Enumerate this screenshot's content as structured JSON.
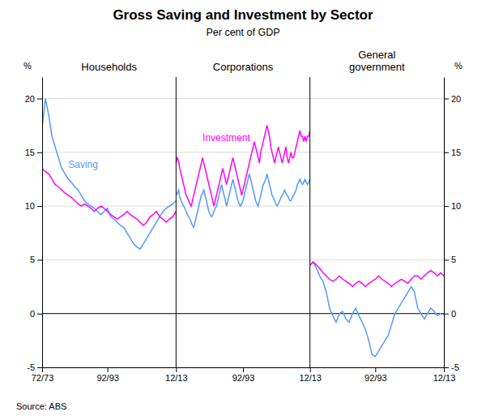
{
  "chart_data": {
    "type": "line",
    "title": "Gross Saving and Investment by Sector",
    "subtitle": "Per cent of GDP",
    "source": "Source: ABS",
    "ylabel": "%",
    "y2label": "%",
    "ylim": [
      -5,
      22
    ],
    "yticks": [
      -5,
      0,
      5,
      10,
      15,
      20
    ],
    "y2lim": [
      -5,
      22
    ],
    "y2ticks": [
      -5,
      0,
      5,
      10,
      15,
      20
    ],
    "grid": true,
    "panels": [
      {
        "title": "Households",
        "categories": [
          "72/73",
          null,
          null,
          null,
          null,
          null,
          null,
          null,
          null,
          null,
          null,
          null,
          null,
          null,
          null,
          null,
          null,
          null,
          null,
          null,
          "92/93",
          null,
          null,
          null,
          null,
          null,
          null,
          null,
          null,
          null,
          null,
          null,
          null,
          null,
          null,
          null,
          null,
          null,
          null,
          null,
          null,
          "12/13"
        ],
        "series": [
          {
            "color": "#5599FF",
            "label": "Saving",
            "values": [
              17.3,
              20.0,
              18.5,
              16.5,
              15.5,
              14.5,
              13.5,
              13.0,
              12.5,
              12.2,
              11.8,
              11.5,
              11.0,
              10.5,
              10.2,
              10.0,
              9.8,
              9.5,
              9.2,
              9.5,
              9.8,
              9.0,
              8.8,
              8.5,
              8.2,
              8.0,
              7.5,
              7.0,
              6.5,
              6.2,
              6.0,
              6.5,
              7.0,
              7.5,
              8.0,
              8.5,
              9.0,
              9.5,
              9.8,
              10.0,
              10.2,
              10.5
            ]
          },
          {
            "color": "#FF00FF",
            "values": [
              13.5,
              13.2,
              13.0,
              12.5,
              12.0,
              11.8,
              11.5,
              11.2,
              11.0,
              10.8,
              10.5,
              10.2,
              10.0,
              10.2,
              10.0,
              9.8,
              9.5,
              9.8,
              10.0,
              9.8,
              9.5,
              9.2,
              9.0,
              8.8,
              9.0,
              9.2,
              9.5,
              9.2,
              9.0,
              8.8,
              8.5,
              8.2,
              8.5,
              9.0,
              9.2,
              9.5,
              9.0,
              8.8,
              8.5,
              8.8,
              9.0,
              9.5
            ]
          }
        ]
      },
      {
        "title": "Corporations",
        "categories": [
          null,
          null,
          null,
          null,
          null,
          null,
          null,
          null,
          null,
          null,
          null,
          null,
          null,
          null,
          null,
          null,
          null,
          null,
          null,
          null,
          null,
          null,
          null,
          null,
          null,
          null,
          null,
          null,
          null,
          null,
          null,
          null,
          null,
          null,
          null,
          null,
          null,
          null,
          null,
          null,
          null,
          null,
          null,
          null,
          null,
          null,
          null,
          null,
          null,
          null,
          null,
          null,
          null,
          "92/93",
          null,
          null,
          null,
          null,
          null,
          null,
          null,
          null,
          null,
          null,
          null,
          null,
          null,
          null,
          null,
          null,
          null,
          null,
          null,
          null,
          null,
          null,
          null,
          null,
          null,
          null,
          null,
          null,
          null,
          null,
          null,
          null,
          null,
          null,
          null,
          null,
          null,
          null,
          null,
          null,
          null,
          null,
          null,
          null,
          null,
          null,
          null,
          null,
          null,
          null,
          null,
          null,
          "12/13"
        ],
        "series": [
          {
            "color": "#5599FF",
            "values": [
              11.0,
              11.2,
              11.5,
              10.8,
              10.5,
              10.2,
              10.0,
              9.8,
              9.5,
              9.2,
              9.0,
              8.8,
              8.5,
              8.2,
              8.0,
              8.5,
              9.0,
              9.5,
              10.0,
              10.5,
              11.0,
              11.2,
              11.5,
              11.0,
              10.5,
              10.0,
              9.5,
              9.2,
              9.0,
              9.2,
              9.5,
              9.8,
              10.0,
              10.5,
              11.0,
              11.5,
              12.0,
              11.5,
              11.0,
              10.5,
              10.0,
              10.5,
              11.0,
              11.5,
              12.0,
              12.5,
              12.0,
              11.5,
              11.0,
              10.5,
              10.2,
              10.0,
              10.2,
              10.5,
              11.0,
              11.5,
              12.0,
              12.5,
              13.0,
              12.5,
              12.0,
              11.5,
              11.0,
              10.5,
              10.2,
              10.0,
              10.5,
              11.0,
              11.5,
              12.0,
              12.2,
              12.5,
              13.0,
              12.5,
              12.0,
              11.5,
              11.0,
              10.8,
              10.5,
              10.2,
              10.0,
              10.2,
              10.5,
              10.8,
              11.0,
              11.2,
              11.5,
              11.2,
              11.0,
              10.8,
              10.5,
              10.5,
              10.8,
              11.0,
              11.2,
              11.5,
              12.0,
              12.2,
              12.5,
              12.2,
              12.0,
              12.2,
              12.5,
              12.2,
              12.0,
              12.2,
              12.5
            ]
          },
          {
            "color": "#FF00FF",
            "label": "Investment",
            "values": [
              14.0,
              14.5,
              14.2,
              13.5,
              13.0,
              12.5,
              12.0,
              11.5,
              11.0,
              10.8,
              10.5,
              10.2,
              10.0,
              10.5,
              11.0,
              11.5,
              12.0,
              12.5,
              13.0,
              13.5,
              14.0,
              14.5,
              14.0,
              13.5,
              13.0,
              12.5,
              12.0,
              11.5,
              11.0,
              10.5,
              10.0,
              10.5,
              11.0,
              11.5,
              12.0,
              12.5,
              13.0,
              13.5,
              13.0,
              12.5,
              12.0,
              12.5,
              13.0,
              13.5,
              14.0,
              14.5,
              14.0,
              13.5,
              13.0,
              12.5,
              12.0,
              11.5,
              11.0,
              11.5,
              12.0,
              12.5,
              13.0,
              13.5,
              14.0,
              14.5,
              15.0,
              15.5,
              16.0,
              15.5,
              15.0,
              14.5,
              14.0,
              15.0,
              15.5,
              16.0,
              16.5,
              17.0,
              17.5,
              17.0,
              16.5,
              15.5,
              15.0,
              14.5,
              14.0,
              14.5,
              15.0,
              15.5,
              15.0,
              14.5,
              14.0,
              14.5,
              15.0,
              15.5,
              14.5,
              14.0,
              14.5,
              15.0,
              14.5,
              14.5,
              15.0,
              15.5,
              16.0,
              16.5,
              17.0,
              16.5,
              16.5,
              16.0,
              16.5,
              16.0,
              16.5,
              16.5,
              17.0
            ]
          }
        ]
      },
      {
        "title": "General\ngovernment",
        "categories": [
          null,
          null,
          null,
          null,
          null,
          null,
          null,
          null,
          null,
          null,
          null,
          null,
          null,
          null,
          null,
          null,
          null,
          null,
          null,
          null,
          "92/93",
          null,
          null,
          null,
          null,
          null,
          null,
          null,
          null,
          null,
          null,
          null,
          null,
          null,
          null,
          null,
          null,
          null,
          null,
          null,
          null,
          "12/13"
        ],
        "series": [
          {
            "color": "#5599FF",
            "values": [
              4.5,
              4.8,
              4.2,
              3.5,
              3.0,
              2.0,
              0.5,
              -0.2,
              -0.8,
              0.0,
              0.2,
              -0.5,
              -0.8,
              0.0,
              0.5,
              -0.2,
              -0.8,
              -1.5,
              -2.5,
              -3.8,
              -4.0,
              -3.5,
              -3.0,
              -2.5,
              -2.0,
              -1.0,
              0.0,
              0.5,
              1.0,
              1.5,
              2.0,
              2.5,
              2.0,
              0.5,
              0.0,
              -0.5,
              0.0,
              0.5,
              0.2,
              -0.2,
              0.0,
              -0.1
            ]
          },
          {
            "color": "#FF00FF",
            "values": [
              4.5,
              4.8,
              4.5,
              4.2,
              3.8,
              3.5,
              3.2,
              3.0,
              3.2,
              3.5,
              3.2,
              3.0,
              2.8,
              2.5,
              2.8,
              3.0,
              2.8,
              2.5,
              2.8,
              3.0,
              3.2,
              3.5,
              3.2,
              3.0,
              2.8,
              2.5,
              2.8,
              3.0,
              3.2,
              3.0,
              2.8,
              3.2,
              3.5,
              3.5,
              3.2,
              3.5,
              3.8,
              4.0,
              3.8,
              3.5,
              3.8,
              3.5
            ]
          }
        ]
      }
    ]
  }
}
